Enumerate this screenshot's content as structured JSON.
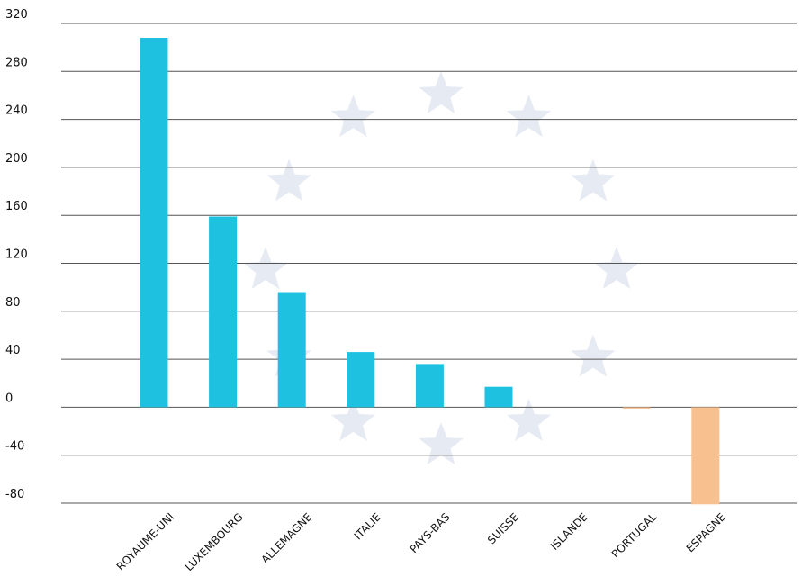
{
  "chart_data": {
    "type": "bar",
    "categories": [
      "ROYAUME-UNI",
      "LUXEMBOURG",
      "ALLEMAGNE",
      "ITALIE",
      "PAYS-BAS",
      "SUISSE",
      "ISLANDE",
      "PORTUGAL",
      "ESPAGNE"
    ],
    "values": [
      308,
      159,
      96,
      46,
      36,
      17,
      0,
      -1,
      -81
    ],
    "title": "",
    "xlabel": "",
    "ylabel": "",
    "ylim": [
      -80,
      320
    ],
    "yticks": [
      "320",
      "280",
      "240",
      "200",
      "160",
      "120",
      "80",
      "40",
      "0",
      "-40",
      "-80"
    ],
    "grid": true,
    "legend": "none",
    "colors": {
      "positive": "#1fc1e1",
      "negative": "#f8c08f",
      "grid": "#555555",
      "stars": "#e6eaf3"
    },
    "background": "eu-flag-star-circle"
  }
}
